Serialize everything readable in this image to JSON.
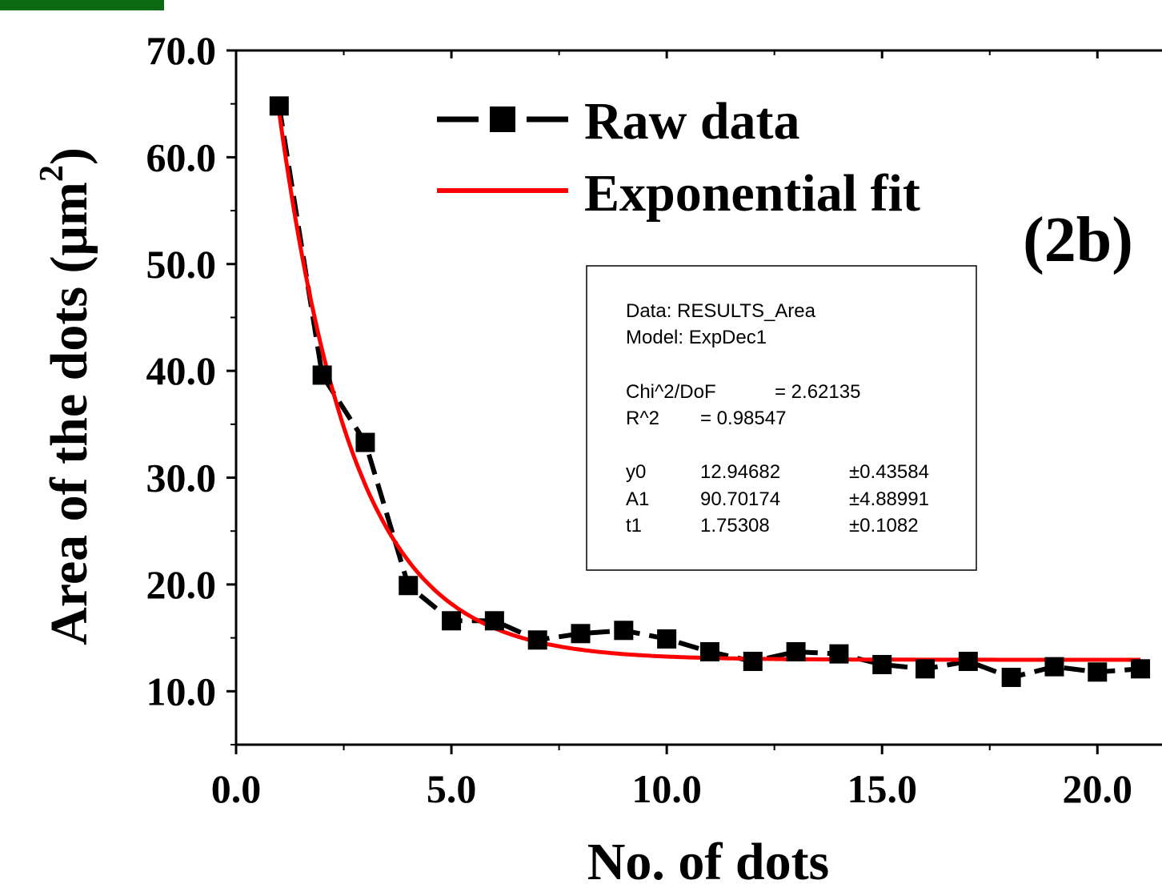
{
  "colors": {
    "raw": "#000000",
    "fit": "#ff0000",
    "corner_bar": "#0b6b12"
  },
  "chart_data": {
    "type": "line",
    "title": "",
    "panel_label": "(2b)",
    "xlabel": "No. of dots",
    "ylabel": "Area of the dots (μm",
    "ylabel_sup": "2",
    "ylabel_close": ")",
    "xlim": [
      0,
      21.5
    ],
    "ylim": [
      5,
      70
    ],
    "x_ticks": [
      {
        "value": 0,
        "label": "0.0"
      },
      {
        "value": 5,
        "label": "5.0"
      },
      {
        "value": 10,
        "label": "10.0"
      },
      {
        "value": 15,
        "label": "15.0"
      },
      {
        "value": 20,
        "label": "20.0"
      }
    ],
    "y_ticks": [
      {
        "value": 10,
        "label": "10.0"
      },
      {
        "value": 20,
        "label": "20.0"
      },
      {
        "value": 30,
        "label": "30.0"
      },
      {
        "value": 40,
        "label": "40.0"
      },
      {
        "value": 50,
        "label": "50.0"
      },
      {
        "value": 60,
        "label": "60.0"
      },
      {
        "value": 70,
        "label": "70.0"
      }
    ],
    "grid": false,
    "legend_position": "top-center",
    "series": [
      {
        "name": "Raw data",
        "style": "dashed line with square markers",
        "x": [
          1,
          2,
          3,
          4,
          5,
          6,
          7,
          8,
          9,
          10,
          11,
          12,
          13,
          14,
          15,
          16,
          17,
          18,
          19,
          20,
          21
        ],
        "y": [
          64.8,
          39.6,
          33.3,
          19.9,
          16.6,
          16.6,
          14.8,
          15.4,
          15.7,
          14.9,
          13.7,
          12.8,
          13.7,
          13.5,
          12.5,
          12.1,
          12.8,
          11.3,
          12.3,
          11.8,
          12.1
        ]
      },
      {
        "name": "Exponential fit",
        "style": "solid line",
        "model": {
          "y0": 12.94682,
          "A1": 90.70174,
          "t1": 1.75308
        },
        "x_range": [
          1,
          21
        ]
      }
    ],
    "fit_box": {
      "data_line": "Data: RESULTS_Area",
      "model_line": "Model: ExpDec1",
      "chi_label": "Chi^2/DoF",
      "chi_value": "= 2.62135",
      "r2_label": "R^2",
      "r2_value": "=  0.98547",
      "params": [
        {
          "name": "y0",
          "value": "12.94682",
          "error": "±0.43584"
        },
        {
          "name": "A1",
          "value": "90.70174",
          "error": "±4.88991"
        },
        {
          "name": "t1",
          "value": "1.75308",
          "error": "±0.1082"
        }
      ]
    }
  }
}
